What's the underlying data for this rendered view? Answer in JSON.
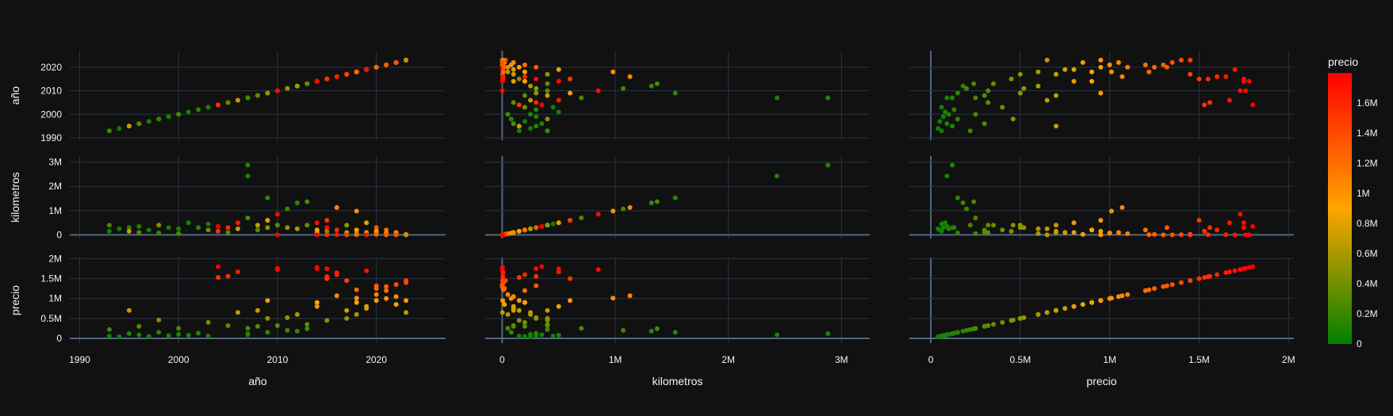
{
  "chart_data": {
    "type": "scatter",
    "subtype": "scatter-matrix",
    "dimensions": [
      "año",
      "kilometros",
      "precio"
    ],
    "colorbar": {
      "title": "precio",
      "range": [
        0,
        1800000
      ],
      "colorscale": [
        "#008000",
        "#FFA500",
        "#FF0000"
      ],
      "ticks": [
        {
          "v": 0,
          "label": "0"
        },
        {
          "v": 200000,
          "label": "0.2M"
        },
        {
          "v": 400000,
          "label": "0.4M"
        },
        {
          "v": 600000,
          "label": "0.6M"
        },
        {
          "v": 800000,
          "label": "0.8M"
        },
        {
          "v": 1000000,
          "label": "1M"
        },
        {
          "v": 1200000,
          "label": "1.2M"
        },
        {
          "v": 1400000,
          "label": "1.4M"
        },
        {
          "v": 1600000,
          "label": "1.6M"
        }
      ]
    },
    "axes": {
      "año": {
        "range": [
          1989,
          2027
        ],
        "ticks": [
          {
            "v": 1990,
            "label": "1990"
          },
          {
            "v": 2000,
            "label": "2000"
          },
          {
            "v": 2010,
            "label": "2010"
          },
          {
            "v": 2020,
            "label": "2020"
          }
        ]
      },
      "kilometros": {
        "range": [
          -150000,
          3250000
        ],
        "ticks": [
          {
            "v": 0,
            "label": "0"
          },
          {
            "v": 1000000,
            "label": "1M"
          },
          {
            "v": 2000000,
            "label": "2M"
          },
          {
            "v": 3000000,
            "label": "3M"
          }
        ]
      },
      "precio": {
        "range": [
          -120000,
          2030000
        ],
        "xticks": [
          {
            "v": 0,
            "label": "0"
          },
          {
            "v": 500000,
            "label": "0.5M"
          },
          {
            "v": 1000000,
            "label": "1M"
          },
          {
            "v": 1500000,
            "label": "1.5M"
          },
          {
            "v": 2000000,
            "label": "2M"
          }
        ],
        "yticks": [
          {
            "v": 0,
            "label": "0"
          },
          {
            "v": 500000,
            "label": "0.5M"
          },
          {
            "v": 1000000,
            "label": "1M"
          },
          {
            "v": 1500000,
            "label": "1.5M"
          },
          {
            "v": 2000000,
            "label": "2M"
          }
        ]
      }
    },
    "points": [
      [
        1993,
        150000,
        60000
      ],
      [
        1993,
        400000,
        220000
      ],
      [
        1994,
        250000,
        40000
      ],
      [
        1995,
        300000,
        120000
      ],
      [
        1995,
        150000,
        700000
      ],
      [
        1996,
        350000,
        90000
      ],
      [
        1996,
        100000,
        300000
      ],
      [
        1997,
        200000,
        50000
      ],
      [
        1998,
        400000,
        460000
      ],
      [
        1998,
        80000,
        150000
      ],
      [
        1999,
        300000,
        70000
      ],
      [
        2000,
        250000,
        100000
      ],
      [
        2000,
        50000,
        250000
      ],
      [
        2001,
        500000,
        80000
      ],
      [
        2002,
        300000,
        130000
      ],
      [
        2003,
        200000,
        400000
      ],
      [
        2003,
        450000,
        60000
      ],
      [
        2004,
        350000,
        1800000
      ],
      [
        2004,
        150000,
        1530000
      ],
      [
        2005,
        300000,
        1560000
      ],
      [
        2005,
        100000,
        320000
      ],
      [
        2006,
        500000,
        1670000
      ],
      [
        2006,
        250000,
        650000
      ],
      [
        2007,
        2880000,
        120000
      ],
      [
        2007,
        2430000,
        90000
      ],
      [
        2007,
        700000,
        250000
      ],
      [
        2008,
        400000,
        700000
      ],
      [
        2008,
        200000,
        300000
      ],
      [
        2009,
        1530000,
        150000
      ],
      [
        2009,
        600000,
        950000
      ],
      [
        2009,
        300000,
        500000
      ],
      [
        2010,
        850000,
        1730000
      ],
      [
        2010,
        400000,
        320000
      ],
      [
        2011,
        1070000,
        200000
      ],
      [
        2011,
        300000,
        520000
      ],
      [
        2012,
        1320000,
        180000
      ],
      [
        2012,
        250000,
        600000
      ],
      [
        2013,
        1370000,
        240000
      ],
      [
        2013,
        400000,
        350000
      ],
      [
        2014,
        500000,
        1750000
      ],
      [
        2014,
        200000,
        900000
      ],
      [
        2014,
        100000,
        800000
      ],
      [
        2015,
        600000,
        1500000
      ],
      [
        2015,
        300000,
        1750000
      ],
      [
        2015,
        150000,
        450000
      ],
      [
        2016,
        1130000,
        1070000
      ],
      [
        2016,
        200000,
        1600000
      ],
      [
        2017,
        400000,
        500000
      ],
      [
        2017,
        100000,
        700000
      ],
      [
        2018,
        980000,
        1010000
      ],
      [
        2018,
        200000,
        900000
      ],
      [
        2018,
        50000,
        600000
      ],
      [
        2019,
        500000,
        800000
      ],
      [
        2019,
        100000,
        750000
      ],
      [
        2020,
        300000,
        1320000
      ],
      [
        2020,
        50000,
        1100000
      ],
      [
        2020,
        150000,
        950000
      ],
      [
        2021,
        200000,
        1200000
      ],
      [
        2021,
        80000,
        1000000
      ],
      [
        2022,
        100000,
        1050000
      ],
      [
        2022,
        20000,
        850000
      ],
      [
        2023,
        30000,
        1450000
      ],
      [
        2023,
        10000,
        1400000
      ],
      [
        2023,
        5000,
        950000
      ],
      [
        2023,
        2000,
        650000
      ],
      [
        2021,
        500,
        1300000
      ],
      [
        2022,
        1000,
        1350000
      ],
      [
        2019,
        2000,
        1700000
      ],
      [
        2017,
        3000,
        1450000
      ],
      [
        2015,
        5000,
        1550000
      ],
      [
        2020,
        20000,
        1250000
      ],
      [
        2018,
        10000,
        1220000
      ],
      [
        2016,
        8000,
        1650000
      ],
      [
        2014,
        3000,
        1780000
      ],
      [
        2010,
        1000,
        1760000
      ]
    ]
  }
}
